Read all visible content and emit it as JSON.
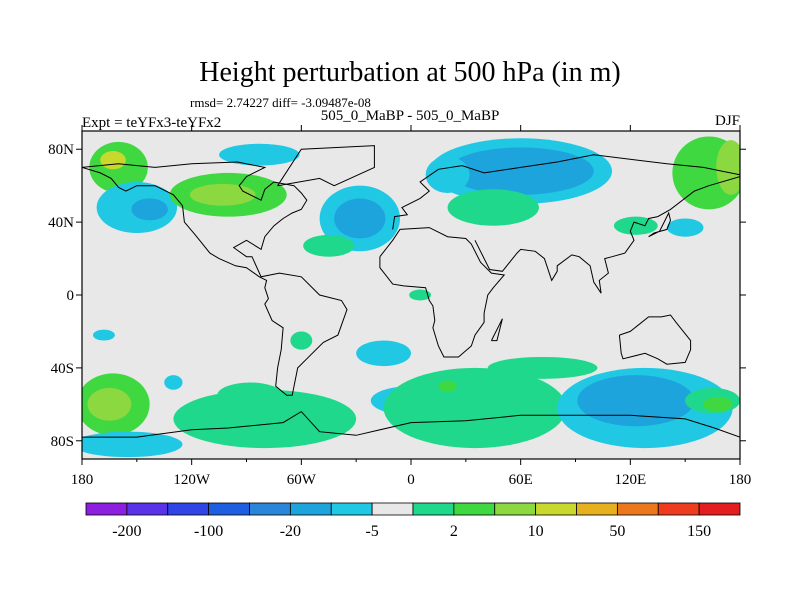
{
  "chart_data": {
    "type": "heatmap",
    "title": "Height perturbation at 500 hPa (in m)",
    "stats": "rmsd= 2.74227 diff= -3.09487e-08",
    "subtitle": "505_0_MaBP - 505_0_MaBP",
    "left_label": "Expt = teYFx3-teYFx2",
    "right_label": "DJF",
    "lon_range": [
      -180,
      180
    ],
    "lat_range": [
      -90,
      90
    ],
    "x_ticks": [
      {
        "value": -180,
        "label": "180"
      },
      {
        "value": -120,
        "label": "120W"
      },
      {
        "value": -60,
        "label": "60W"
      },
      {
        "value": 0,
        "label": "0"
      },
      {
        "value": 60,
        "label": "60E"
      },
      {
        "value": 120,
        "label": "120E"
      },
      {
        "value": 180,
        "label": "180"
      }
    ],
    "y_ticks": [
      {
        "value": 80,
        "label": "80N"
      },
      {
        "value": 40,
        "label": "40N"
      },
      {
        "value": 0,
        "label": "0"
      },
      {
        "value": -40,
        "label": "40S"
      },
      {
        "value": -80,
        "label": "80S"
      }
    ],
    "levels": [
      -200,
      -150,
      -100,
      -50,
      -20,
      -10,
      -5,
      -2,
      2,
      5,
      10,
      20,
      50,
      100,
      150,
      200
    ],
    "colorbar_labels": [
      "-200",
      "-100",
      "-20",
      "-5",
      "2",
      "10",
      "50",
      "150"
    ],
    "colorbar_colors": [
      "#8c1fe0",
      "#5a32e8",
      "#2f45e6",
      "#1e5ee0",
      "#2a86d8",
      "#1ea4dc",
      "#20c8e4",
      "#e8e8e8",
      "#20d88c",
      "#40d840",
      "#8cd840",
      "#c8d82c",
      "#e6b01e",
      "#ec781e",
      "#ee3c1e",
      "#e41e1e"
    ],
    "regions": [
      {
        "lon": -160,
        "lat": 70,
        "rx": 16,
        "ry": 14,
        "class": 9
      },
      {
        "lon": -163,
        "lat": 74,
        "rx": 7,
        "ry": 5,
        "class": 11
      },
      {
        "lon": -150,
        "lat": 48,
        "rx": 22,
        "ry": 14,
        "class": 6
      },
      {
        "lon": -143,
        "lat": 47,
        "rx": 10,
        "ry": 6,
        "class": 5
      },
      {
        "lon": -100,
        "lat": 55,
        "rx": 32,
        "ry": 12,
        "class": 9
      },
      {
        "lon": -103,
        "lat": 55,
        "rx": 18,
        "ry": 6,
        "class": 10
      },
      {
        "lon": -83,
        "lat": 77,
        "rx": 22,
        "ry": 6,
        "class": 6
      },
      {
        "lon": -28,
        "lat": 42,
        "rx": 22,
        "ry": 18,
        "class": 6
      },
      {
        "lon": -28,
        "lat": 42,
        "rx": 14,
        "ry": 11,
        "class": 5
      },
      {
        "lon": -45,
        "lat": 27,
        "rx": 14,
        "ry": 6,
        "class": 8
      },
      {
        "lon": 60,
        "lat": 68,
        "rx": 50,
        "ry": 18,
        "class": 6
      },
      {
        "lon": 60,
        "lat": 68,
        "rx": 40,
        "ry": 13,
        "class": 5
      },
      {
        "lon": 20,
        "lat": 66,
        "rx": 12,
        "ry": 10,
        "class": 6
      },
      {
        "lon": 45,
        "lat": 48,
        "rx": 25,
        "ry": 10,
        "class": 8
      },
      {
        "lon": 163,
        "lat": 67,
        "rx": 20,
        "ry": 20,
        "class": 9
      },
      {
        "lon": 175,
        "lat": 70,
        "rx": 8,
        "ry": 15,
        "class": 10
      },
      {
        "lon": 150,
        "lat": 37,
        "rx": 10,
        "ry": 5,
        "class": 6
      },
      {
        "lon": 123,
        "lat": 38,
        "rx": 12,
        "ry": 5,
        "class": 8
      },
      {
        "lon": 5,
        "lat": 0,
        "rx": 6,
        "ry": 3,
        "class": 8
      },
      {
        "lon": -60,
        "lat": -25,
        "rx": 6,
        "ry": 5,
        "class": 8
      },
      {
        "lon": -168,
        "lat": -22,
        "rx": 6,
        "ry": 3,
        "class": 6
      },
      {
        "lon": -163,
        "lat": -60,
        "rx": 20,
        "ry": 17,
        "class": 9
      },
      {
        "lon": -165,
        "lat": -60,
        "rx": 12,
        "ry": 9,
        "class": 10
      },
      {
        "lon": -155,
        "lat": -82,
        "rx": 30,
        "ry": 7,
        "class": 6
      },
      {
        "lon": -130,
        "lat": -48,
        "rx": 5,
        "ry": 4,
        "class": 6
      },
      {
        "lon": -80,
        "lat": -68,
        "rx": 50,
        "ry": 16,
        "class": 8
      },
      {
        "lon": -88,
        "lat": -55,
        "rx": 18,
        "ry": 7,
        "class": 8
      },
      {
        "lon": -15,
        "lat": -32,
        "rx": 15,
        "ry": 7,
        "class": 6
      },
      {
        "lon": 0,
        "lat": -58,
        "rx": 22,
        "ry": 8,
        "class": 6
      },
      {
        "lon": 35,
        "lat": -62,
        "rx": 50,
        "ry": 22,
        "class": 8
      },
      {
        "lon": 20,
        "lat": -50,
        "rx": 5,
        "ry": 3,
        "class": 9
      },
      {
        "lon": 72,
        "lat": -40,
        "rx": 30,
        "ry": 6,
        "class": 8
      },
      {
        "lon": 128,
        "lat": -62,
        "rx": 48,
        "ry": 22,
        "class": 6
      },
      {
        "lon": 123,
        "lat": -58,
        "rx": 32,
        "ry": 14,
        "class": 5
      },
      {
        "lon": 165,
        "lat": -58,
        "rx": 15,
        "ry": 7,
        "class": 8
      },
      {
        "lon": 168,
        "lat": -60,
        "rx": 8,
        "ry": 4,
        "class": 9
      }
    ],
    "coastlines": [
      [
        [
          -180,
          70
        ],
        [
          -170,
          67
        ],
        [
          -164,
          64
        ],
        [
          -160,
          59
        ],
        [
          -156,
          57
        ],
        [
          -150,
          60
        ],
        [
          -140,
          60
        ],
        [
          -130,
          55
        ],
        [
          -125,
          49
        ],
        [
          -124,
          40
        ],
        [
          -118,
          33
        ],
        [
          -110,
          23
        ],
        [
          -105,
          20
        ],
        [
          -96,
          16
        ],
        [
          -90,
          15
        ],
        [
          -83,
          10
        ],
        [
          -79,
          8
        ],
        [
          -80,
          4
        ],
        [
          -78,
          -2
        ],
        [
          -80,
          -5
        ],
        [
          -76,
          -14
        ],
        [
          -70,
          -18
        ],
        [
          -71,
          -30
        ],
        [
          -73,
          -40
        ],
        [
          -74,
          -50
        ],
        [
          -68,
          -55
        ],
        [
          -65,
          -55
        ],
        [
          -62,
          -40
        ],
        [
          -57,
          -35
        ],
        [
          -48,
          -26
        ],
        [
          -40,
          -22
        ],
        [
          -35,
          -8
        ],
        [
          -38,
          -3
        ],
        [
          -50,
          0
        ],
        [
          -60,
          10
        ],
        [
          -72,
          12
        ],
        [
          -82,
          10
        ],
        [
          -87,
          21
        ],
        [
          -90,
          21
        ],
        [
          -97,
          26
        ],
        [
          -90,
          30
        ],
        [
          -82,
          25
        ],
        [
          -80,
          32
        ],
        [
          -75,
          38
        ],
        [
          -70,
          42
        ],
        [
          -65,
          45
        ],
        [
          -60,
          47
        ],
        [
          -57,
          52
        ],
        [
          -60,
          56
        ],
        [
          -64,
          60
        ],
        [
          -75,
          62
        ],
        [
          -80,
          58
        ],
        [
          -82,
          52
        ],
        [
          -92,
          57
        ],
        [
          -94,
          60
        ],
        [
          -90,
          65
        ],
        [
          -80,
          70
        ],
        [
          -95,
          73
        ],
        [
          -120,
          72
        ],
        [
          -140,
          70
        ],
        [
          -160,
          72
        ],
        [
          -180,
          70
        ]
      ],
      [
        [
          -17,
          21
        ],
        [
          -17,
          15
        ],
        [
          -10,
          6
        ],
        [
          -4,
          5
        ],
        [
          8,
          4
        ],
        [
          10,
          -3
        ],
        [
          12,
          -6
        ],
        [
          13,
          -14
        ],
        [
          12,
          -18
        ],
        [
          15,
          -28
        ],
        [
          18,
          -34
        ],
        [
          26,
          -34
        ],
        [
          33,
          -28
        ],
        [
          35,
          -22
        ],
        [
          40,
          -15
        ],
        [
          40,
          -10
        ],
        [
          42,
          0
        ],
        [
          45,
          4
        ],
        [
          51,
          11
        ],
        [
          44,
          12
        ],
        [
          38,
          18
        ],
        [
          33,
          28
        ],
        [
          30,
          31
        ],
        [
          20,
          32
        ],
        [
          10,
          37
        ],
        [
          -6,
          36
        ],
        [
          -10,
          30
        ],
        [
          -17,
          21
        ]
      ],
      [
        [
          -10,
          36
        ],
        [
          -9,
          43
        ],
        [
          -2,
          44
        ],
        [
          -5,
          48
        ],
        [
          5,
          53
        ],
        [
          10,
          57
        ],
        [
          5,
          62
        ],
        [
          15,
          69
        ],
        [
          28,
          71
        ],
        [
          40,
          67
        ],
        [
          60,
          70
        ],
        [
          80,
          73
        ],
        [
          100,
          77
        ],
        [
          140,
          72
        ],
        [
          160,
          70
        ],
        [
          170,
          68
        ],
        [
          180,
          66
        ]
      ],
      [
        [
          35,
          30
        ],
        [
          43,
          14
        ],
        [
          50,
          13
        ],
        [
          58,
          23
        ],
        [
          60,
          25
        ],
        [
          68,
          24
        ],
        [
          73,
          20
        ],
        [
          77,
          8
        ],
        [
          80,
          13
        ],
        [
          80,
          16
        ],
        [
          88,
          22
        ],
        [
          92,
          21
        ],
        [
          98,
          16
        ],
        [
          100,
          7
        ],
        [
          104,
          1
        ],
        [
          103,
          8
        ],
        [
          108,
          12
        ],
        [
          106,
          20
        ],
        [
          110,
          21
        ],
        [
          117,
          23
        ],
        [
          122,
          30
        ],
        [
          120,
          35
        ],
        [
          122,
          40
        ],
        [
          128,
          38
        ],
        [
          130,
          42
        ],
        [
          135,
          43
        ],
        [
          142,
          47
        ],
        [
          155,
          57
        ],
        [
          163,
          60
        ],
        [
          180,
          65
        ]
      ],
      [
        [
          114,
          -22
        ],
        [
          120,
          -20
        ],
        [
          130,
          -12
        ],
        [
          137,
          -12
        ],
        [
          142,
          -11
        ],
        [
          145,
          -15
        ],
        [
          153,
          -25
        ],
        [
          153,
          -30
        ],
        [
          150,
          -37
        ],
        [
          140,
          -38
        ],
        [
          135,
          -35
        ],
        [
          128,
          -32
        ],
        [
          116,
          -35
        ],
        [
          115,
          -32
        ],
        [
          114,
          -22
        ]
      ],
      [
        [
          -180,
          -78
        ],
        [
          -150,
          -78
        ],
        [
          -120,
          -74
        ],
        [
          -100,
          -73
        ],
        [
          -70,
          -70
        ],
        [
          -60,
          -64
        ],
        [
          -50,
          -75
        ],
        [
          -30,
          -77
        ],
        [
          0,
          -70
        ],
        [
          30,
          -69
        ],
        [
          60,
          -66
        ],
        [
          90,
          -66
        ],
        [
          120,
          -66
        ],
        [
          150,
          -68
        ],
        [
          166,
          -73
        ],
        [
          180,
          -78
        ]
      ],
      [
        [
          44,
          -25
        ],
        [
          49,
          -15
        ],
        [
          50,
          -13
        ],
        [
          47,
          -25
        ],
        [
          44,
          -25
        ]
      ],
      [
        [
          -73,
          60
        ],
        [
          -60,
          80
        ],
        [
          -20,
          82
        ],
        [
          -20,
          70
        ],
        [
          -42,
          60
        ],
        [
          -50,
          64
        ],
        [
          -73,
          60
        ]
      ],
      [
        [
          130,
          32
        ],
        [
          133,
          34
        ],
        [
          140,
          36
        ],
        [
          142,
          41
        ],
        [
          141,
          45
        ],
        [
          136,
          35
        ],
        [
          130,
          32
        ]
      ]
    ]
  }
}
